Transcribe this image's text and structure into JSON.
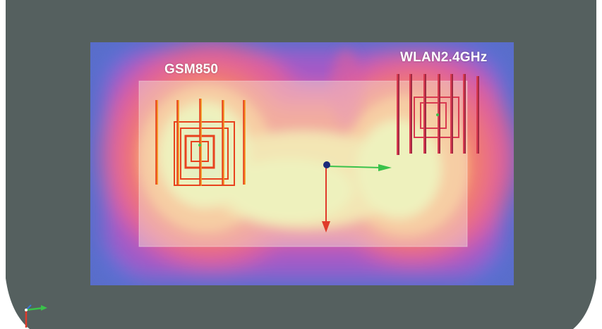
{
  "scene": {
    "background_color": "#55605f",
    "board_color": "#f5f2dc",
    "field_colors": [
      "#5a6fd6",
      "#a15ac8",
      "#e0609a",
      "#f07a72",
      "#f7b27c",
      "#f1dc98",
      "#e9f0a8",
      "#d9ecb0"
    ]
  },
  "labels": {
    "gsm": "GSM850",
    "wlan": "WLAN2.4GHz"
  },
  "antennas": {
    "gsm": {
      "name": "GSM850",
      "color": "#e8421e",
      "highlight": "#f7b21f",
      "icon": "meander-coil-icon"
    },
    "wlan": {
      "name": "WLAN2.4GHz",
      "color": "#d93a50",
      "highlight": "#7a1f3a",
      "icon": "meander-coil-icon"
    }
  },
  "axes": {
    "origin_color": "#1c2a7a",
    "x_color": "#3ac24a",
    "y_color": "#e03a2a",
    "triad_icon": "xyz-axis-triad-icon"
  }
}
